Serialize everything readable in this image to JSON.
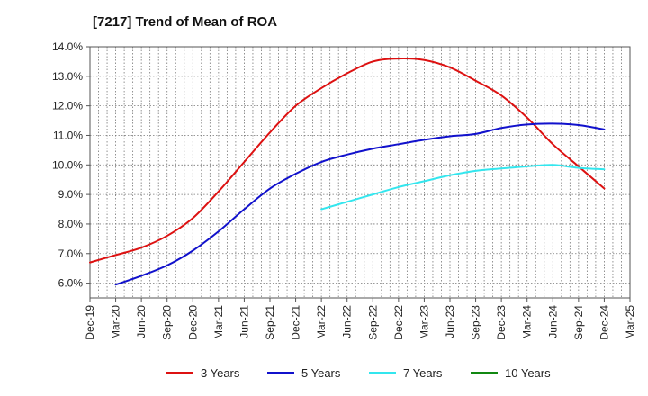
{
  "chart_data": {
    "type": "line",
    "title": "[7217]  Trend of Mean of ROA",
    "xlabel": "",
    "ylabel": "",
    "ylim": [
      5.5,
      14.0
    ],
    "grid": true,
    "legend_position": "bottom",
    "y_ticks": [
      {
        "value": 6,
        "label": "6.0%"
      },
      {
        "value": 7,
        "label": "7.0%"
      },
      {
        "value": 8,
        "label": "8.0%"
      },
      {
        "value": 9,
        "label": "9.0%"
      },
      {
        "value": 10,
        "label": "10.0%"
      },
      {
        "value": 11,
        "label": "11.0%"
      },
      {
        "value": 12,
        "label": "12.0%"
      },
      {
        "value": 13,
        "label": "13.0%"
      },
      {
        "value": 14,
        "label": "14.0%"
      }
    ],
    "categories": [
      "Dec-19",
      "Mar-20",
      "Jun-20",
      "Sep-20",
      "Dec-20",
      "Mar-21",
      "Jun-21",
      "Sep-21",
      "Dec-21",
      "Mar-22",
      "Jun-22",
      "Sep-22",
      "Dec-22",
      "Mar-23",
      "Jun-23",
      "Sep-23",
      "Dec-23",
      "Mar-24",
      "Jun-24",
      "Sep-24",
      "Dec-24",
      "Mar-25"
    ],
    "series": [
      {
        "name": "3 Years",
        "color": "#dd1111",
        "values": [
          6.7,
          6.95,
          7.2,
          7.6,
          8.2,
          9.1,
          10.1,
          11.1,
          12.0,
          12.6,
          13.1,
          13.5,
          13.6,
          13.55,
          13.3,
          12.85,
          12.35,
          11.6,
          10.7,
          9.95,
          9.2,
          null
        ]
      },
      {
        "name": "5 Years",
        "color": "#1111cc",
        "values": [
          null,
          5.95,
          6.25,
          6.6,
          7.1,
          7.75,
          8.5,
          9.2,
          9.7,
          10.1,
          10.35,
          10.55,
          10.7,
          10.85,
          10.97,
          11.05,
          11.25,
          11.37,
          11.4,
          11.35,
          11.2,
          null
        ]
      },
      {
        "name": "7 Years",
        "color": "#33e6ee",
        "values": [
          null,
          null,
          null,
          null,
          null,
          null,
          null,
          null,
          null,
          8.5,
          8.75,
          9.0,
          9.25,
          9.45,
          9.65,
          9.8,
          9.88,
          9.95,
          10.0,
          9.9,
          9.85,
          null
        ]
      },
      {
        "name": "10 Years",
        "color": "#118811",
        "values": [
          null,
          null,
          null,
          null,
          null,
          null,
          null,
          null,
          null,
          null,
          null,
          null,
          null,
          null,
          null,
          null,
          null,
          null,
          null,
          null,
          null,
          null
        ]
      }
    ]
  }
}
